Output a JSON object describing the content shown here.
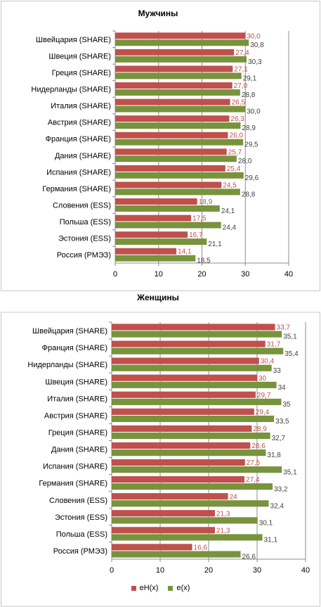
{
  "legend": {
    "s1_label": "eH(x)",
    "s2_label": "e(x)",
    "s1_color": "#c0504d",
    "s2_color": "#77933c"
  },
  "chart_data": [
    {
      "type": "bar",
      "orientation": "horizontal",
      "title": "Мужчины",
      "categories": [
        "Швейцария (SHARE)",
        "Швеция (SHARE)",
        "Греция (SHARE)",
        "Нидерланды (SHARE)",
        "Италия (SHARE)",
        "Австрия (SHARE)",
        "Франция (SHARE)",
        "Дания (SHARE)",
        "Испания (SHARE)",
        "Германия (SHARE)",
        "Словения (ESS)",
        "Польша (ESS)",
        "Эстония (ESS)",
        "Россия (РМЭЗ)"
      ],
      "series": [
        {
          "name": "eH(x)",
          "color": "#c0504d",
          "values": [
            30.0,
            27.4,
            27.1,
            27.0,
            26.5,
            26.3,
            26.0,
            25.7,
            25.4,
            24.5,
            18.9,
            17.5,
            16.7,
            14.1
          ],
          "labels": [
            "30,0",
            "27,4",
            "27,1",
            "27,0",
            "26,5",
            "26,3",
            "26,0",
            "25,7",
            "25,4",
            "24,5",
            "18,9",
            "17,5",
            "16,7",
            "14,1"
          ]
        },
        {
          "name": "e(x)",
          "color": "#77933c",
          "values": [
            30.8,
            30.3,
            29.1,
            28.8,
            30.0,
            28.9,
            29.5,
            28.0,
            29.6,
            28.8,
            24.1,
            24.4,
            21.1,
            18.5
          ],
          "labels": [
            "30,8",
            "30,3",
            "29,1",
            "28,8",
            "30,0",
            "28,9",
            "29,5",
            "28,0",
            "29,6",
            "28,8",
            "24,1",
            "24,4",
            "21,1",
            "18,5"
          ]
        }
      ],
      "xlim": [
        0,
        40
      ],
      "xticks": [
        "0",
        "10",
        "20",
        "30",
        "40"
      ],
      "grid": "vertical major"
    },
    {
      "type": "bar",
      "orientation": "horizontal",
      "title": "Женщины",
      "categories": [
        "Швейцария (SHARE)",
        "Франция (SHARE)",
        "Нидерланды (SHARE)",
        "Швеция (SHARE)",
        "Италия (SHARE)",
        "Австрия (SHARE)",
        "Греция (SHARE)",
        "Дания (SHARE)",
        "Испания (SHARE)",
        "Германия (SHARE)",
        "Словения (ESS)",
        "Эстония (ESS)",
        "Польша (ESS)",
        "Россия (РМЭЗ)"
      ],
      "series": [
        {
          "name": "eH(x)",
          "color": "#c0504d",
          "values": [
            33.7,
            31.7,
            30.4,
            30,
            29.7,
            29.4,
            28.9,
            28.6,
            27.5,
            27.4,
            24,
            21.3,
            21.3,
            16.6
          ],
          "labels": [
            "33,7",
            "31,7",
            "30,4",
            "30",
            "29,7",
            "29,4",
            "28,9",
            "28,6",
            "27,5",
            "27,4",
            "24",
            "21,3",
            "21,3",
            "16,6"
          ]
        },
        {
          "name": "e(x)",
          "color": "#77933c",
          "values": [
            35.1,
            35.4,
            33,
            34,
            35,
            33.5,
            32.7,
            31.8,
            35.1,
            33.2,
            32.4,
            30.1,
            31.1,
            26.6
          ],
          "labels": [
            "35,1",
            "35,4",
            "33",
            "34",
            "35",
            "33,5",
            "32,7",
            "31,8",
            "35,1",
            "33,2",
            "32,4",
            "30,1",
            "31,1",
            "26,6"
          ]
        }
      ],
      "xlim": [
        0,
        40
      ],
      "xticks": [
        "0",
        "10",
        "20",
        "30",
        "40"
      ],
      "grid": "vertical major",
      "legend_position": "bottom"
    }
  ]
}
